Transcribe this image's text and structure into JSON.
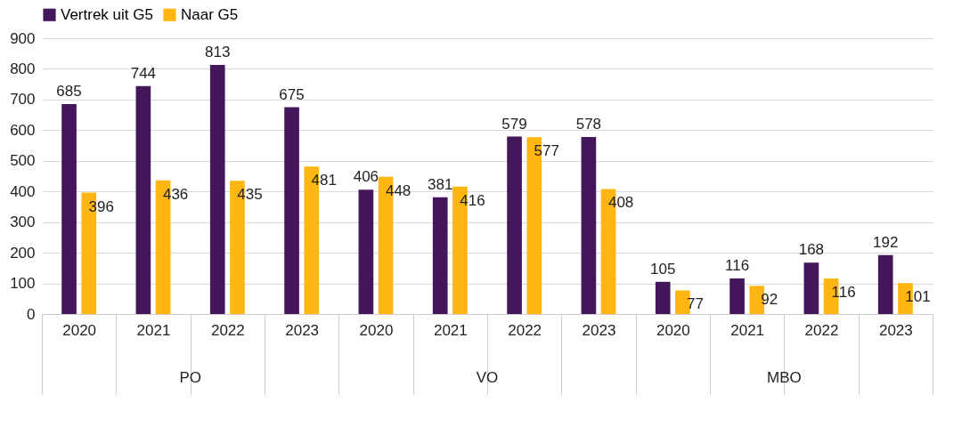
{
  "chart_data": {
    "type": "bar",
    "categories": [
      "2020",
      "2021",
      "2022",
      "2023",
      "2020",
      "2021",
      "2022",
      "2023",
      "2020",
      "2021",
      "2022",
      "2023"
    ],
    "series": [
      {
        "name": "Vertrek uit G5",
        "color": "#44165a",
        "values": [
          685,
          744,
          813,
          675,
          406,
          381,
          579,
          578,
          105,
          116,
          168,
          192
        ]
      },
      {
        "name": "Naar G5",
        "color": "#ffb612",
        "values": [
          396,
          436,
          435,
          481,
          448,
          416,
          577,
          408,
          77,
          92,
          116,
          101
        ]
      }
    ],
    "annotations": [
      "PO",
      "VO",
      "MBO"
    ],
    "ylim": [
      0,
      900
    ],
    "yticks": [
      0,
      100,
      200,
      300,
      400,
      500,
      600,
      700,
      800,
      900
    ],
    "grid": "y",
    "legend": "top",
    "data_labels": true
  }
}
